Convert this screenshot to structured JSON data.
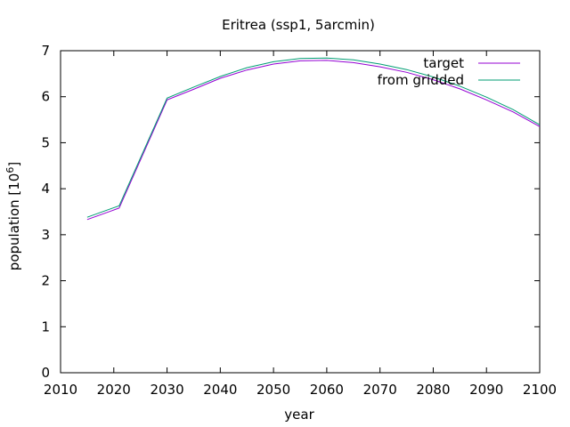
{
  "chart_data": {
    "type": "line",
    "title": "Eritrea (ssp1, 5arcmin)",
    "xlabel": "year",
    "ylabel_base": "population [10",
    "ylabel_exp": "6",
    "ylabel_close": "]",
    "xlim": [
      2010,
      2100
    ],
    "ylim": [
      0,
      7
    ],
    "xticks": [
      2010,
      2020,
      2030,
      2040,
      2050,
      2060,
      2070,
      2080,
      2090,
      2100
    ],
    "yticks": [
      0,
      1,
      2,
      3,
      4,
      5,
      6,
      7
    ],
    "grid": false,
    "legend_position": "top-right",
    "series": [
      {
        "name": "target",
        "color": "#9400d3",
        "x": [
          2015,
          2021,
          2030,
          2035,
          2040,
          2045,
          2050,
          2055,
          2060,
          2065,
          2070,
          2075,
          2080,
          2085,
          2090,
          2095,
          2100
        ],
        "y": [
          3.33,
          3.58,
          5.93,
          6.16,
          6.4,
          6.58,
          6.71,
          6.78,
          6.79,
          6.74,
          6.65,
          6.53,
          6.37,
          6.17,
          5.93,
          5.67,
          5.35
        ]
      },
      {
        "name": "from gridded",
        "color": "#009e73",
        "x": [
          2015,
          2021,
          2030,
          2035,
          2040,
          2045,
          2050,
          2055,
          2060,
          2065,
          2070,
          2075,
          2080,
          2085,
          2090,
          2095,
          2100
        ],
        "y": [
          3.38,
          3.63,
          5.97,
          6.21,
          6.44,
          6.63,
          6.76,
          6.83,
          6.84,
          6.8,
          6.71,
          6.59,
          6.43,
          6.23,
          5.99,
          5.72,
          5.39
        ]
      }
    ]
  }
}
